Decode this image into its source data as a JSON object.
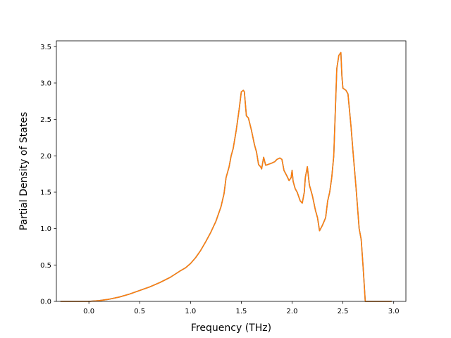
{
  "chart_data": {
    "type": "line",
    "title": "",
    "xlabel": "Frequency (THz)",
    "ylabel": "Partial Density of States",
    "xlim": [
      -0.32,
      3.12
    ],
    "ylim": [
      0.0,
      3.58
    ],
    "x_ticks": [
      0.0,
      0.5,
      1.0,
      1.5,
      2.0,
      2.5,
      3.0
    ],
    "x_tick_labels": [
      "0.0",
      "0.5",
      "1.0",
      "1.5",
      "2.0",
      "2.5",
      "3.0"
    ],
    "y_ticks": [
      0.0,
      0.5,
      1.0,
      1.5,
      2.0,
      2.5,
      3.0,
      3.5
    ],
    "y_tick_labels": [
      "0.0",
      "0.5",
      "1.0",
      "1.5",
      "2.0",
      "2.5",
      "3.0",
      "3.5"
    ],
    "grid": false,
    "series": [
      {
        "color": "#1f77b4",
        "x": [
          -0.28,
          0.0,
          0.1,
          0.2,
          0.3,
          0.4,
          0.5,
          0.6,
          0.7,
          0.8,
          0.9,
          0.95,
          1.0,
          1.05,
          1.1,
          1.15,
          1.2,
          1.25,
          1.3,
          1.33,
          1.35,
          1.38,
          1.4,
          1.42,
          1.45,
          1.48,
          1.5,
          1.52,
          1.53,
          1.55,
          1.57,
          1.6,
          1.63,
          1.65,
          1.67,
          1.69,
          1.7,
          1.72,
          1.74,
          1.76,
          1.8,
          1.83,
          1.85,
          1.88,
          1.9,
          1.92,
          1.95,
          1.97,
          1.99,
          2.0,
          2.01,
          2.03,
          2.05,
          2.08,
          2.1,
          2.12,
          2.13,
          2.15,
          2.17,
          2.2,
          2.23,
          2.25,
          2.27,
          2.3,
          2.33,
          2.35,
          2.37,
          2.39,
          2.41,
          2.43,
          2.44,
          2.46,
          2.48,
          2.49,
          2.5,
          2.53,
          2.55,
          2.58,
          2.6,
          2.63,
          2.66,
          2.68,
          2.7,
          2.72,
          2.8,
          2.98
        ],
        "y": [
          0.0,
          0.0,
          0.01,
          0.03,
          0.06,
          0.1,
          0.15,
          0.2,
          0.26,
          0.33,
          0.42,
          0.46,
          0.52,
          0.6,
          0.7,
          0.82,
          0.95,
          1.1,
          1.3,
          1.48,
          1.7,
          1.85,
          2.0,
          2.1,
          2.35,
          2.65,
          2.88,
          2.9,
          2.88,
          2.55,
          2.52,
          2.35,
          2.15,
          2.05,
          1.88,
          1.85,
          1.82,
          1.98,
          1.87,
          1.88,
          1.9,
          1.92,
          1.95,
          1.97,
          1.95,
          1.8,
          1.72,
          1.66,
          1.7,
          1.8,
          1.65,
          1.55,
          1.5,
          1.38,
          1.35,
          1.5,
          1.7,
          1.85,
          1.6,
          1.45,
          1.25,
          1.15,
          0.97,
          1.05,
          1.15,
          1.38,
          1.5,
          1.7,
          2.0,
          2.8,
          3.2,
          3.38,
          3.42,
          3.1,
          2.93,
          2.9,
          2.85,
          2.4,
          2.05,
          1.55,
          1.0,
          0.85,
          0.45,
          0.0,
          0.0,
          0.0
        ]
      },
      {
        "color": "#ff7f0e",
        "x": [
          -0.28,
          0.0,
          0.1,
          0.2,
          0.3,
          0.4,
          0.5,
          0.6,
          0.7,
          0.8,
          0.9,
          0.95,
          1.0,
          1.05,
          1.1,
          1.15,
          1.2,
          1.25,
          1.3,
          1.33,
          1.35,
          1.38,
          1.4,
          1.42,
          1.45,
          1.48,
          1.5,
          1.52,
          1.53,
          1.55,
          1.57,
          1.6,
          1.63,
          1.65,
          1.67,
          1.69,
          1.7,
          1.72,
          1.74,
          1.76,
          1.8,
          1.83,
          1.85,
          1.88,
          1.9,
          1.92,
          1.95,
          1.97,
          1.99,
          2.0,
          2.01,
          2.03,
          2.05,
          2.08,
          2.1,
          2.12,
          2.13,
          2.15,
          2.17,
          2.2,
          2.23,
          2.25,
          2.27,
          2.3,
          2.33,
          2.35,
          2.37,
          2.39,
          2.41,
          2.43,
          2.44,
          2.46,
          2.48,
          2.49,
          2.5,
          2.53,
          2.55,
          2.58,
          2.6,
          2.63,
          2.66,
          2.68,
          2.7,
          2.72,
          2.8,
          2.98
        ],
        "y": [
          0.0,
          0.0,
          0.01,
          0.03,
          0.06,
          0.1,
          0.15,
          0.2,
          0.26,
          0.33,
          0.42,
          0.46,
          0.52,
          0.6,
          0.7,
          0.82,
          0.95,
          1.1,
          1.3,
          1.48,
          1.7,
          1.85,
          2.0,
          2.1,
          2.35,
          2.65,
          2.88,
          2.9,
          2.88,
          2.55,
          2.52,
          2.35,
          2.15,
          2.05,
          1.88,
          1.85,
          1.82,
          1.98,
          1.87,
          1.88,
          1.9,
          1.92,
          1.95,
          1.97,
          1.95,
          1.8,
          1.72,
          1.66,
          1.7,
          1.8,
          1.65,
          1.55,
          1.5,
          1.38,
          1.35,
          1.5,
          1.7,
          1.85,
          1.6,
          1.45,
          1.25,
          1.15,
          0.97,
          1.05,
          1.15,
          1.38,
          1.5,
          1.7,
          2.0,
          2.8,
          3.2,
          3.38,
          3.42,
          3.1,
          2.93,
          2.9,
          2.85,
          2.4,
          2.05,
          1.55,
          1.0,
          0.85,
          0.45,
          0.0,
          0.0,
          0.0
        ]
      }
    ]
  }
}
